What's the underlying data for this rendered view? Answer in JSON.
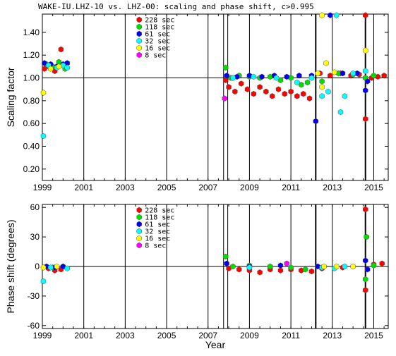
{
  "chart_data": [
    {
      "type": "scatter",
      "title": "WAKE-IU.LHZ-10 vs. LHZ-00: scaling and phase shift, c>0.995",
      "ylabel": "Scaling factor",
      "xlabel": "",
      "xlim": [
        1999.0,
        2015.7
      ],
      "ylim": [
        0.1,
        1.56
      ],
      "y_ticks": [
        "0.20",
        "0.40",
        "0.60",
        "0.80",
        "1.00",
        "1.20",
        "1.40"
      ],
      "x_ticks": [
        "1999",
        "2001",
        "2003",
        "2005",
        "2007",
        "2009",
        "2011",
        "2013",
        "2015"
      ],
      "reference_line": 1.0,
      "event_lines": [
        2007.75,
        2007.95,
        2012.2,
        2014.6
      ],
      "legend_placement": "top-center",
      "series": [
        {
          "name": "228 sec",
          "color": "#ff0000",
          "points": [
            [
              1999.1,
              1.08
            ],
            [
              1999.3,
              1.1
            ],
            [
              1999.6,
              1.06
            ],
            [
              1999.9,
              1.25
            ],
            [
              2007.85,
              0.98
            ],
            [
              2008.0,
              0.92
            ],
            [
              2008.3,
              0.88
            ],
            [
              2008.6,
              0.95
            ],
            [
              2008.9,
              0.9
            ],
            [
              2009.2,
              0.86
            ],
            [
              2009.5,
              0.92
            ],
            [
              2009.8,
              0.88
            ],
            [
              2010.1,
              0.84
            ],
            [
              2010.4,
              0.9
            ],
            [
              2010.7,
              0.86
            ],
            [
              2011.0,
              0.88
            ],
            [
              2011.3,
              0.84
            ],
            [
              2011.6,
              0.86
            ],
            [
              2011.9,
              0.82
            ],
            [
              2012.4,
              1.04
            ],
            [
              2012.9,
              1.02
            ],
            [
              2013.4,
              1.04
            ],
            [
              2013.9,
              1.02
            ],
            [
              2014.3,
              1.03
            ],
            [
              2014.6,
              0.64
            ],
            [
              2014.6,
              1.55
            ],
            [
              2014.9,
              1.0
            ],
            [
              2015.2,
              1.01
            ],
            [
              2015.5,
              1.02
            ]
          ]
        },
        {
          "name": "118 sec",
          "color": "#00dd00",
          "points": [
            [
              1999.2,
              1.12
            ],
            [
              1999.5,
              1.1
            ],
            [
              1999.8,
              1.14
            ],
            [
              2000.1,
              1.08
            ],
            [
              2007.85,
              1.09
            ],
            [
              2008.1,
              1.0
            ],
            [
              2008.5,
              1.02
            ],
            [
              2009.0,
              1.01
            ],
            [
              2009.5,
              1.0
            ],
            [
              2010.0,
              1.01
            ],
            [
              2010.5,
              0.98
            ],
            [
              2011.0,
              1.0
            ],
            [
              2011.5,
              0.94
            ],
            [
              2011.8,
              0.96
            ],
            [
              2012.5,
              0.97
            ],
            [
              2013.3,
              1.04
            ],
            [
              2014.0,
              1.03
            ],
            [
              2014.6,
              1.0
            ],
            [
              2015.0,
              1.02
            ]
          ]
        },
        {
          "name": "61 sec",
          "color": "#0000ee",
          "points": [
            [
              1999.1,
              1.13
            ],
            [
              1999.4,
              1.12
            ],
            [
              1999.7,
              1.1
            ],
            [
              2000.0,
              1.12
            ],
            [
              2000.2,
              1.13
            ],
            [
              2007.9,
              1.02
            ],
            [
              2008.4,
              1.01
            ],
            [
              2009.0,
              1.02
            ],
            [
              2009.6,
              1.01
            ],
            [
              2010.2,
              1.02
            ],
            [
              2010.8,
              1.01
            ],
            [
              2011.4,
              1.02
            ],
            [
              2012.0,
              1.02
            ],
            [
              2012.2,
              0.62
            ],
            [
              2012.9,
              1.55
            ],
            [
              2013.5,
              1.04
            ],
            [
              2014.2,
              1.04
            ],
            [
              2014.6,
              0.89
            ],
            [
              2014.7,
              0.97
            ]
          ]
        },
        {
          "name": "32 sec",
          "color": "#00ffff",
          "points": [
            [
              1999.05,
              0.49
            ],
            [
              1999.3,
              1.11
            ],
            [
              1999.7,
              1.09
            ],
            [
              2000.0,
              1.11
            ],
            [
              2000.2,
              1.09
            ],
            [
              2008.2,
              1.0
            ],
            [
              2009.2,
              1.01
            ],
            [
              2010.3,
              1.0
            ],
            [
              2011.3,
              0.96
            ],
            [
              2012.0,
              1.0
            ],
            [
              2012.5,
              0.84
            ],
            [
              2012.8,
              0.88
            ],
            [
              2013.2,
              1.55
            ],
            [
              2013.4,
              0.7
            ],
            [
              2013.6,
              0.84
            ],
            [
              2014.0,
              1.04
            ],
            [
              2014.6,
              1.06
            ]
          ]
        },
        {
          "name": "16 sec",
          "color": "#ffff00",
          "points": [
            [
              1999.05,
              0.87
            ],
            [
              1999.4,
              1.08
            ],
            [
              1999.8,
              1.1
            ],
            [
              2012.3,
              1.04
            ],
            [
              2012.5,
              0.92
            ],
            [
              2012.5,
              1.55
            ],
            [
              2012.7,
              1.13
            ],
            [
              2013.1,
              1.05
            ],
            [
              2014.6,
              1.24
            ]
          ]
        },
        {
          "name": "8 sec",
          "color": "#ff00ff",
          "points": [
            [
              2007.8,
              0.82
            ]
          ]
        }
      ]
    },
    {
      "type": "scatter",
      "title": "",
      "ylabel": "Phase shift (degrees)",
      "xlabel": "Year",
      "xlim": [
        1999.0,
        2015.7
      ],
      "ylim": [
        -63,
        63
      ],
      "y_ticks": [
        "-60",
        "-30",
        "0",
        "30",
        "60"
      ],
      "x_ticks": [
        "1999",
        "2001",
        "2003",
        "2005",
        "2007",
        "2009",
        "2011",
        "2013",
        "2015"
      ],
      "reference_line": 0,
      "event_lines": [
        2007.75,
        2007.95,
        2012.2,
        2014.6
      ],
      "legend_placement": "top-center",
      "series": [
        {
          "name": "228 sec",
          "color": "#ff0000",
          "points": [
            [
              1999.3,
              -2
            ],
            [
              1999.6,
              -4
            ],
            [
              1999.9,
              -3
            ],
            [
              2008.0,
              -2
            ],
            [
              2008.5,
              -3
            ],
            [
              2009.0,
              -4
            ],
            [
              2009.5,
              -6
            ],
            [
              2010.0,
              -3
            ],
            [
              2010.5,
              -4
            ],
            [
              2011.0,
              -3
            ],
            [
              2011.5,
              -4
            ],
            [
              2012.0,
              -5
            ],
            [
              2012.5,
              -2
            ],
            [
              2013.5,
              -1
            ],
            [
              2014.6,
              -24
            ],
            [
              2014.6,
              58
            ],
            [
              2015.0,
              2
            ],
            [
              2015.4,
              3
            ]
          ]
        },
        {
          "name": "118 sec",
          "color": "#00dd00",
          "points": [
            [
              1999.5,
              -1
            ],
            [
              2007.85,
              10
            ],
            [
              2008.2,
              0
            ],
            [
              2009.0,
              1
            ],
            [
              2010.0,
              0
            ],
            [
              2011.0,
              -1
            ],
            [
              2011.7,
              -3
            ],
            [
              2014.6,
              -13
            ],
            [
              2014.65,
              30
            ],
            [
              2015.0,
              1
            ]
          ]
        },
        {
          "name": "61 sec",
          "color": "#0000ee",
          "points": [
            [
              1999.2,
              0
            ],
            [
              1999.6,
              -1
            ],
            [
              2000.0,
              0
            ],
            [
              2007.9,
              3
            ],
            [
              2009.0,
              0
            ],
            [
              2010.5,
              1
            ],
            [
              2012.3,
              0
            ],
            [
              2014.6,
              6
            ],
            [
              2014.7,
              -3
            ]
          ]
        },
        {
          "name": "32 sec",
          "color": "#00ffff",
          "points": [
            [
              1999.05,
              -15
            ],
            [
              1999.4,
              -1
            ],
            [
              2000.2,
              -2
            ],
            [
              2009.0,
              -1
            ],
            [
              2012.5,
              -1
            ],
            [
              2013.1,
              -2
            ],
            [
              2013.6,
              0
            ]
          ]
        },
        {
          "name": "16 sec",
          "color": "#ffff00",
          "points": [
            [
              1999.05,
              -1
            ],
            [
              1999.7,
              0
            ],
            [
              2012.6,
              0
            ],
            [
              2013.2,
              0
            ],
            [
              2014.0,
              0
            ]
          ]
        },
        {
          "name": "8 sec",
          "color": "#ff00ff",
          "points": [
            [
              2010.8,
              3
            ]
          ]
        }
      ]
    }
  ]
}
